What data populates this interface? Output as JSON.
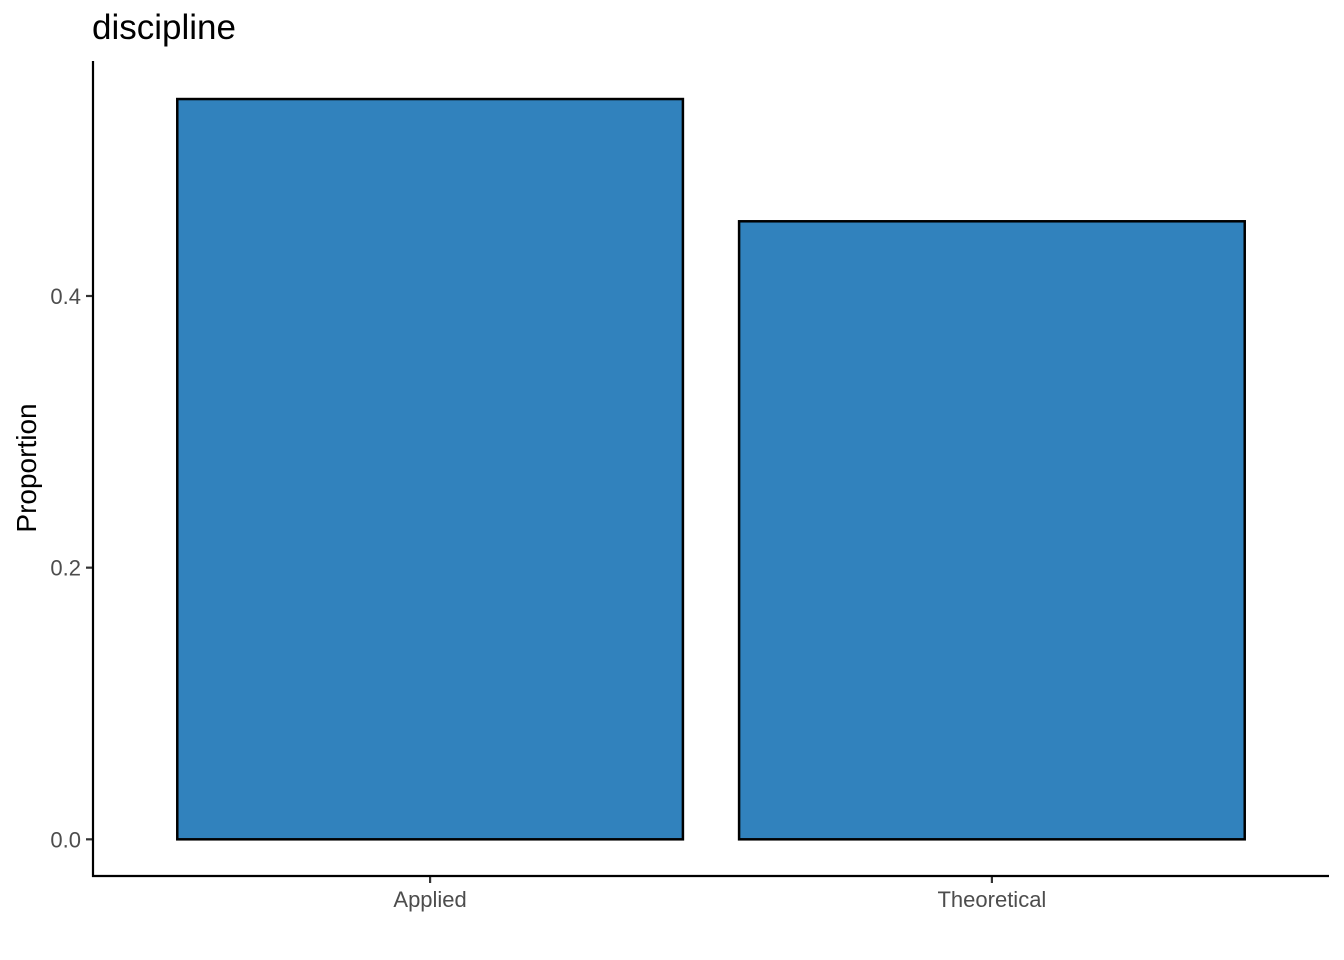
{
  "chart_data": {
    "type": "bar",
    "title": "discipline",
    "xlabel": "",
    "ylabel": "Proportion",
    "categories": [
      "Applied",
      "Theoretical"
    ],
    "values": [
      0.545,
      0.455
    ],
    "ylim": [
      -0.027,
      0.573
    ],
    "yticks": [
      0.0,
      0.2,
      0.4
    ],
    "ytick_labels": [
      "0.0",
      "0.2",
      "0.4"
    ],
    "bar_color": "#3182bd",
    "bar_outline": "#000000",
    "grid": false,
    "legend": "none"
  }
}
